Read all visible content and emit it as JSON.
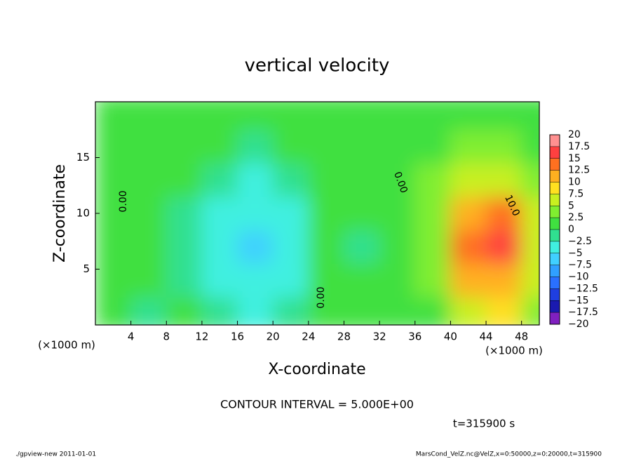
{
  "chart_data": {
    "type": "heatmap",
    "title": "vertical velocity",
    "x_label": "X-coordinate",
    "y_label": "Z-coordinate",
    "x_unit_labels": [
      "(×1000 m)",
      "(×1000 m)"
    ],
    "x": [
      2,
      6,
      10,
      14,
      18,
      22,
      26,
      30,
      34,
      38,
      42,
      46,
      50
    ],
    "y": [
      1,
      4,
      7,
      10,
      13,
      16,
      19
    ],
    "z": [
      [
        0,
        -1,
        0,
        -1,
        -3,
        -2,
        0,
        1,
        1,
        2,
        6,
        8,
        3
      ],
      [
        1,
        1,
        -1,
        -3,
        -5,
        -3,
        0,
        1,
        1,
        3,
        11,
        12,
        5
      ],
      [
        1,
        1,
        -2,
        -5,
        -7,
        -3,
        0,
        -2,
        1,
        3,
        13,
        17,
        6
      ],
      [
        1,
        1,
        -2,
        -4,
        -5,
        -3,
        1,
        1,
        1,
        3,
        10,
        14,
        6
      ],
      [
        1,
        1,
        1,
        -2,
        -3,
        -2,
        1,
        1,
        1,
        3,
        6,
        7,
        4
      ],
      [
        1,
        1,
        1,
        1,
        -1,
        1,
        1,
        1,
        1,
        2,
        4,
        4,
        2
      ],
      [
        1,
        1,
        1,
        1,
        1,
        1,
        1,
        1,
        1,
        1,
        2,
        2,
        1
      ]
    ],
    "xlim": [
      0,
      50
    ],
    "ylim": [
      0,
      20
    ],
    "xticks": [
      4,
      8,
      12,
      16,
      20,
      24,
      28,
      32,
      36,
      40,
      44,
      48
    ],
    "yticks": [
      5,
      10,
      15
    ],
    "colorbar": {
      "levels": [
        {
          "value": -20,
          "label": "−20"
        },
        {
          "value": -17.5,
          "label": "−17.5"
        },
        {
          "value": -15,
          "label": "−15"
        },
        {
          "value": -12.5,
          "label": "−12.5"
        },
        {
          "value": -10,
          "label": "−10"
        },
        {
          "value": -7.5,
          "label": "−7.5"
        },
        {
          "value": -5,
          "label": "−5"
        },
        {
          "value": -2.5,
          "label": "−2.5"
        },
        0,
        2.5,
        5,
        7.5,
        10,
        12.5,
        15,
        17.5,
        20
      ],
      "colors": [
        "#8020c0",
        "#1a1ab0",
        "#1f3fe0",
        "#2a70ff",
        "#30a0ff",
        "#40d0ff",
        "#40f0e0",
        "#30e090",
        "#40e040",
        "#80ee30",
        "#c8f020",
        "#ffe020",
        "#ffb020",
        "#ff7020",
        "#ff4040",
        "#ff9090"
      ]
    },
    "contour_labels": [
      "0.00",
      "0.00",
      "0.00",
      "10.0"
    ],
    "contour_interval": "CONTOUR INTERVAL = 5.000E+00",
    "time_label": "t=315900 s",
    "footer_left": "./gpview-new  2011-01-01",
    "footer_right": "MarsCond_VelZ.nc@VelZ,x=0:50000,z=0:20000,t=315900"
  }
}
